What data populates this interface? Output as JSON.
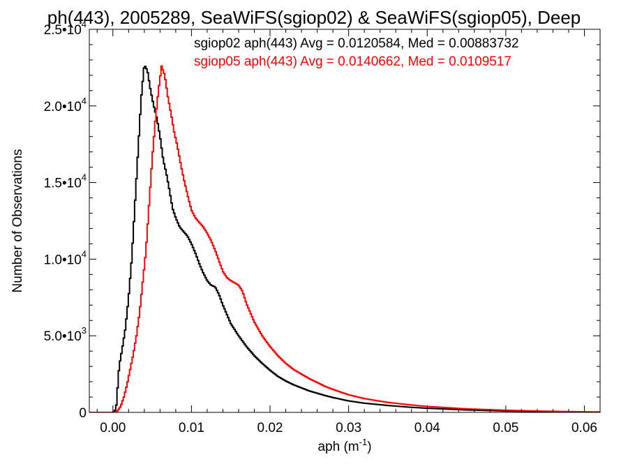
{
  "chart_data": {
    "type": "line",
    "title": "ph(443), 2005289, SeaWiFS(sgiop02) & SeaWiFS(sgiop05), Deep",
    "xlabel": "aph (m",
    "xlabel_sup": "-1",
    "xlabel_end": ")",
    "ylabel": "Number of Observations",
    "xlim": [
      -0.003,
      0.062
    ],
    "ylim": [
      0,
      25000
    ],
    "grid": false,
    "legend_position": "top-right",
    "x_ticks": [
      {
        "value": 0.0,
        "label": "0.00"
      },
      {
        "value": 0.01,
        "label": "0.01"
      },
      {
        "value": 0.02,
        "label": "0.02"
      },
      {
        "value": 0.03,
        "label": "0.03"
      },
      {
        "value": 0.04,
        "label": "0.04"
      },
      {
        "value": 0.05,
        "label": "0.05"
      },
      {
        "value": 0.06,
        "label": "0.06"
      }
    ],
    "y_ticks": [
      {
        "value": 0,
        "mant": "0",
        "exp": ""
      },
      {
        "value": 5000,
        "mant": "5.0•10",
        "exp": "3"
      },
      {
        "value": 10000,
        "mant": "1.0•10",
        "exp": "4"
      },
      {
        "value": 15000,
        "mant": "1.5•10",
        "exp": "4"
      },
      {
        "value": 20000,
        "mant": "2.0•10",
        "exp": "4"
      },
      {
        "value": 25000,
        "mant": "2.5•10",
        "exp": "4"
      }
    ],
    "series": [
      {
        "name": "sgiop02 aph(443)",
        "annotation": "sgiop02 aph(443) Avg = 0.0120584, Med = 0.00883732",
        "color": "#000000",
        "points": [
          [
            -0.003,
            0
          ],
          [
            0.0,
            0
          ],
          [
            0.0004,
            200
          ],
          [
            0.0008,
            3000
          ],
          [
            0.0012,
            4200
          ],
          [
            0.0016,
            5500
          ],
          [
            0.002,
            7500
          ],
          [
            0.0024,
            10000
          ],
          [
            0.0028,
            13500
          ],
          [
            0.0032,
            17000
          ],
          [
            0.0036,
            20500
          ],
          [
            0.004,
            22700
          ],
          [
            0.0044,
            22300
          ],
          [
            0.0048,
            21000
          ],
          [
            0.0052,
            20000
          ],
          [
            0.0056,
            19200
          ],
          [
            0.006,
            18000
          ],
          [
            0.0064,
            16500
          ],
          [
            0.0068,
            15600
          ],
          [
            0.0072,
            14500
          ],
          [
            0.0076,
            13300
          ],
          [
            0.008,
            12700
          ],
          [
            0.0085,
            12100
          ],
          [
            0.009,
            11800
          ],
          [
            0.0095,
            11500
          ],
          [
            0.01,
            11000
          ],
          [
            0.0105,
            10400
          ],
          [
            0.011,
            9700
          ],
          [
            0.0115,
            9100
          ],
          [
            0.012,
            8600
          ],
          [
            0.0125,
            8300
          ],
          [
            0.013,
            8200
          ],
          [
            0.0135,
            7700
          ],
          [
            0.014,
            7000
          ],
          [
            0.015,
            5800
          ],
          [
            0.016,
            5000
          ],
          [
            0.017,
            4300
          ],
          [
            0.018,
            3700
          ],
          [
            0.019,
            3200
          ],
          [
            0.02,
            2750
          ],
          [
            0.021,
            2350
          ],
          [
            0.022,
            2050
          ],
          [
            0.023,
            1800
          ],
          [
            0.024,
            1600
          ],
          [
            0.025,
            1400
          ],
          [
            0.026,
            1250
          ],
          [
            0.027,
            1100
          ],
          [
            0.028,
            970
          ],
          [
            0.03,
            750
          ],
          [
            0.032,
            600
          ],
          [
            0.035,
            450
          ],
          [
            0.038,
            330
          ],
          [
            0.04,
            270
          ],
          [
            0.045,
            160
          ],
          [
            0.05,
            90
          ],
          [
            0.055,
            50
          ],
          [
            0.06,
            25
          ],
          [
            0.062,
            20
          ]
        ]
      },
      {
        "name": "sgiop05 aph(443)",
        "annotation": "sgiop05 aph(443) Avg = 0.0140662, Med = 0.0109517",
        "color": "#ff0000",
        "points": [
          [
            -0.003,
            0
          ],
          [
            0.0002,
            0
          ],
          [
            0.0006,
            100
          ],
          [
            0.001,
            400
          ],
          [
            0.0014,
            1000
          ],
          [
            0.0018,
            1800
          ],
          [
            0.0022,
            2800
          ],
          [
            0.0026,
            3800
          ],
          [
            0.003,
            5000
          ],
          [
            0.0034,
            6500
          ],
          [
            0.0038,
            8500
          ],
          [
            0.0042,
            10500
          ],
          [
            0.0046,
            13500
          ],
          [
            0.005,
            16500
          ],
          [
            0.0054,
            19000
          ],
          [
            0.0058,
            21000
          ],
          [
            0.0062,
            22600
          ],
          [
            0.0066,
            22000
          ],
          [
            0.007,
            20600
          ],
          [
            0.0074,
            19500
          ],
          [
            0.0078,
            18300
          ],
          [
            0.0082,
            17400
          ],
          [
            0.0086,
            16300
          ],
          [
            0.009,
            15300
          ],
          [
            0.0095,
            14200
          ],
          [
            0.01,
            13200
          ],
          [
            0.0105,
            12700
          ],
          [
            0.011,
            12400
          ],
          [
            0.0115,
            12100
          ],
          [
            0.012,
            11700
          ],
          [
            0.0125,
            11200
          ],
          [
            0.013,
            10600
          ],
          [
            0.0135,
            9900
          ],
          [
            0.014,
            9200
          ],
          [
            0.0145,
            8800
          ],
          [
            0.015,
            8600
          ],
          [
            0.016,
            8300
          ],
          [
            0.0165,
            7900
          ],
          [
            0.017,
            7100
          ],
          [
            0.018,
            5900
          ],
          [
            0.019,
            5000
          ],
          [
            0.02,
            4300
          ],
          [
            0.021,
            3700
          ],
          [
            0.022,
            3200
          ],
          [
            0.023,
            2800
          ],
          [
            0.024,
            2500
          ],
          [
            0.025,
            2200
          ],
          [
            0.026,
            1950
          ],
          [
            0.027,
            1700
          ],
          [
            0.028,
            1500
          ],
          [
            0.03,
            1150
          ],
          [
            0.032,
            900
          ],
          [
            0.035,
            650
          ],
          [
            0.038,
            480
          ],
          [
            0.04,
            390
          ],
          [
            0.045,
            230
          ],
          [
            0.05,
            140
          ],
          [
            0.055,
            80
          ],
          [
            0.06,
            40
          ],
          [
            0.062,
            30
          ]
        ]
      }
    ]
  }
}
